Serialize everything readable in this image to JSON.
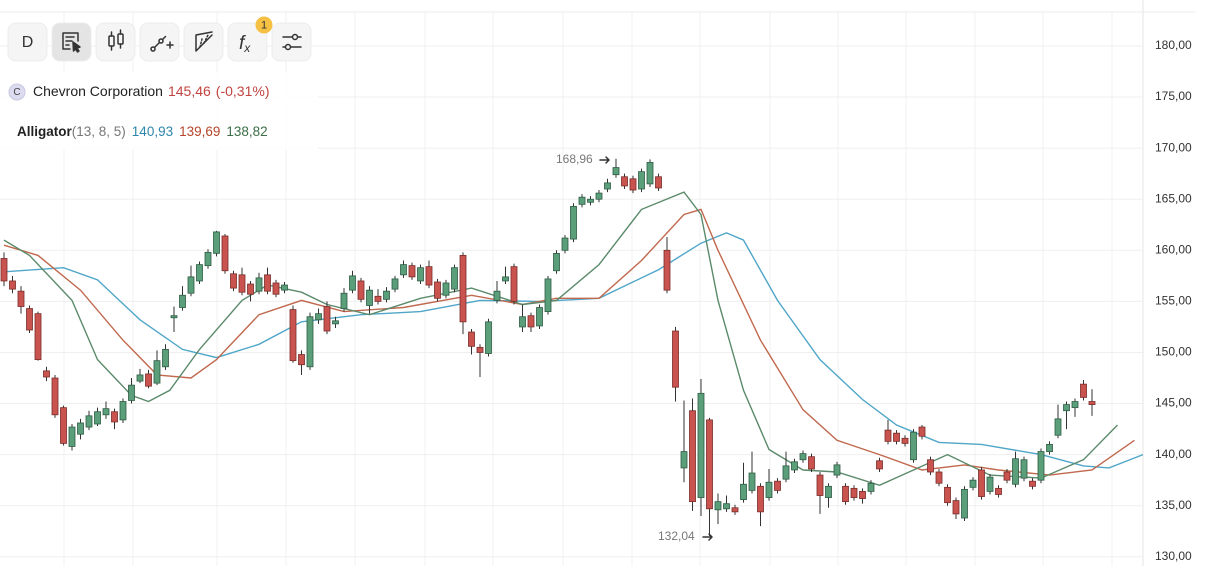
{
  "toolbar": {
    "interval": "D",
    "fx": [
      "f",
      "x"
    ],
    "badge": "1"
  },
  "legend": {
    "symbol_icon": "C",
    "name": "Chevron Corporation",
    "price": "145,46",
    "change": "(-0,31%)",
    "indicator": {
      "name": "Alligator",
      "params": "(13, 8, 5)",
      "values": [
        "140,93",
        "139,69",
        "138,82"
      ]
    }
  },
  "chart_data": {
    "type": "candlestick",
    "up_color": "#5a9e7a",
    "down_color": "#c9544f",
    "ylim": [
      129.1,
      184.5
    ],
    "yticks": [
      {
        "value": 130,
        "label": "130,00"
      },
      {
        "value": 135,
        "label": "135,00"
      },
      {
        "value": 140,
        "label": "140,00"
      },
      {
        "value": 145,
        "label": "145,00"
      },
      {
        "value": 150,
        "label": "150,00"
      },
      {
        "value": 155,
        "label": "155,00"
      },
      {
        "value": 160,
        "label": "160,00"
      },
      {
        "value": 165,
        "label": "165,00"
      },
      {
        "value": 170,
        "label": "170,00"
      },
      {
        "value": 175,
        "label": "175,00"
      },
      {
        "value": 180,
        "label": "180,00"
      }
    ],
    "grid": true,
    "annotations": [
      {
        "text": "168,96",
        "index": 72,
        "value": 168.96
      },
      {
        "text": "132,04",
        "index": 83,
        "value": 132.04
      }
    ],
    "candles": [
      {
        "open": 159.2,
        "high": 159.8,
        "low": 156.5,
        "close": 157.0
      },
      {
        "open": 157.0,
        "high": 157.5,
        "low": 155.8,
        "close": 156.2
      },
      {
        "open": 156.0,
        "high": 156.5,
        "low": 153.8,
        "close": 154.5
      },
      {
        "open": 154.3,
        "high": 154.6,
        "low": 151.9,
        "close": 152.2
      },
      {
        "open": 153.8,
        "high": 154.0,
        "low": 149.2,
        "close": 149.3
      },
      {
        "open": 148.2,
        "high": 148.6,
        "low": 147.2,
        "close": 147.6
      },
      {
        "open": 147.5,
        "high": 147.8,
        "low": 143.6,
        "close": 143.9
      },
      {
        "open": 144.6,
        "high": 144.8,
        "low": 140.9,
        "close": 141.1
      },
      {
        "open": 140.8,
        "high": 143.0,
        "low": 140.4,
        "close": 142.7
      },
      {
        "open": 142.0,
        "high": 143.5,
        "low": 141.5,
        "close": 143.1
      },
      {
        "open": 142.7,
        "high": 144.3,
        "low": 142.4,
        "close": 143.8
      },
      {
        "open": 143.0,
        "high": 144.6,
        "low": 142.8,
        "close": 144.2
      },
      {
        "open": 143.9,
        "high": 145.2,
        "low": 143.5,
        "close": 144.5
      },
      {
        "open": 144.2,
        "high": 144.5,
        "low": 142.5,
        "close": 143.2
      },
      {
        "open": 143.4,
        "high": 145.5,
        "low": 143.1,
        "close": 145.2
      },
      {
        "open": 145.3,
        "high": 147.5,
        "low": 145.0,
        "close": 146.8
      },
      {
        "open": 147.2,
        "high": 148.4,
        "low": 147.0,
        "close": 147.8
      },
      {
        "open": 147.9,
        "high": 148.3,
        "low": 146.5,
        "close": 146.7
      },
      {
        "open": 147.0,
        "high": 150.2,
        "low": 146.8,
        "close": 149.2
      },
      {
        "open": 148.6,
        "high": 150.8,
        "low": 148.3,
        "close": 150.3
      },
      {
        "open": 153.4,
        "high": 154.5,
        "low": 152.0,
        "close": 153.6
      },
      {
        "open": 154.4,
        "high": 156.5,
        "low": 154.1,
        "close": 155.6
      },
      {
        "open": 155.8,
        "high": 158.5,
        "low": 155.5,
        "close": 157.4
      },
      {
        "open": 157.0,
        "high": 158.9,
        "low": 156.7,
        "close": 158.6
      },
      {
        "open": 158.5,
        "high": 160.1,
        "low": 158.2,
        "close": 159.8
      },
      {
        "open": 159.7,
        "high": 161.9,
        "low": 159.4,
        "close": 161.8
      },
      {
        "open": 161.4,
        "high": 161.6,
        "low": 157.7,
        "close": 158.0
      },
      {
        "open": 157.7,
        "high": 158.0,
        "low": 156.0,
        "close": 156.3
      },
      {
        "open": 157.6,
        "high": 158.3,
        "low": 155.6,
        "close": 155.9
      },
      {
        "open": 156.7,
        "high": 157.0,
        "low": 155.0,
        "close": 155.7
      },
      {
        "open": 156.0,
        "high": 157.8,
        "low": 155.7,
        "close": 157.3
      },
      {
        "open": 157.6,
        "high": 158.3,
        "low": 155.7,
        "close": 156.0
      },
      {
        "open": 156.8,
        "high": 157.1,
        "low": 155.4,
        "close": 155.7
      },
      {
        "open": 156.1,
        "high": 156.9,
        "low": 155.8,
        "close": 156.6
      },
      {
        "open": 154.2,
        "high": 154.6,
        "low": 149.0,
        "close": 149.2
      },
      {
        "open": 149.8,
        "high": 150.2,
        "low": 147.8,
        "close": 148.8
      },
      {
        "open": 148.6,
        "high": 153.9,
        "low": 148.3,
        "close": 153.5
      },
      {
        "open": 153.2,
        "high": 154.3,
        "low": 152.8,
        "close": 153.8
      },
      {
        "open": 154.5,
        "high": 155.0,
        "low": 151.8,
        "close": 152.1
      },
      {
        "open": 152.8,
        "high": 153.5,
        "low": 152.4,
        "close": 153.1
      },
      {
        "open": 154.3,
        "high": 156.3,
        "low": 154.0,
        "close": 155.8
      },
      {
        "open": 156.1,
        "high": 158.0,
        "low": 155.8,
        "close": 157.5
      },
      {
        "open": 157.0,
        "high": 157.3,
        "low": 154.9,
        "close": 155.2
      },
      {
        "open": 154.6,
        "high": 156.5,
        "low": 153.8,
        "close": 156.1
      },
      {
        "open": 155.5,
        "high": 156.2,
        "low": 154.7,
        "close": 155.0
      },
      {
        "open": 155.2,
        "high": 156.4,
        "low": 154.9,
        "close": 156.0
      },
      {
        "open": 156.2,
        "high": 157.5,
        "low": 155.9,
        "close": 157.2
      },
      {
        "open": 157.6,
        "high": 159.0,
        "low": 157.3,
        "close": 158.6
      },
      {
        "open": 158.5,
        "high": 158.8,
        "low": 157.1,
        "close": 157.4
      },
      {
        "open": 157.0,
        "high": 158.6,
        "low": 156.7,
        "close": 158.3
      },
      {
        "open": 158.4,
        "high": 159.0,
        "low": 156.3,
        "close": 156.6
      },
      {
        "open": 156.9,
        "high": 157.2,
        "low": 155.0,
        "close": 155.3
      },
      {
        "open": 155.6,
        "high": 157.1,
        "low": 155.3,
        "close": 156.8
      },
      {
        "open": 156.2,
        "high": 158.6,
        "low": 155.9,
        "close": 158.3
      },
      {
        "open": 159.5,
        "high": 159.8,
        "low": 151.8,
        "close": 153.0
      },
      {
        "open": 152.0,
        "high": 152.3,
        "low": 149.8,
        "close": 150.6
      },
      {
        "open": 150.5,
        "high": 150.8,
        "low": 147.6,
        "close": 150.0
      },
      {
        "open": 149.9,
        "high": 153.3,
        "low": 149.6,
        "close": 153.0
      },
      {
        "open": 155.1,
        "high": 157.0,
        "low": 154.8,
        "close": 156.0
      },
      {
        "open": 157.0,
        "high": 158.4,
        "low": 156.7,
        "close": 157.4
      },
      {
        "open": 158.4,
        "high": 158.7,
        "low": 154.7,
        "close": 155.0
      },
      {
        "open": 152.5,
        "high": 154.7,
        "low": 152.0,
        "close": 153.5
      },
      {
        "open": 153.6,
        "high": 153.9,
        "low": 152.0,
        "close": 152.5
      },
      {
        "open": 152.6,
        "high": 154.7,
        "low": 152.3,
        "close": 154.4
      },
      {
        "open": 154.0,
        "high": 157.5,
        "low": 153.7,
        "close": 157.2
      },
      {
        "open": 158.0,
        "high": 160.0,
        "low": 157.7,
        "close": 159.7
      },
      {
        "open": 160.0,
        "high": 161.5,
        "low": 159.7,
        "close": 161.2
      },
      {
        "open": 161.1,
        "high": 164.6,
        "low": 160.8,
        "close": 164.3
      },
      {
        "open": 164.5,
        "high": 165.5,
        "low": 164.2,
        "close": 165.2
      },
      {
        "open": 164.7,
        "high": 165.3,
        "low": 164.4,
        "close": 165.0
      },
      {
        "open": 165.0,
        "high": 165.9,
        "low": 164.7,
        "close": 165.6
      },
      {
        "open": 166.0,
        "high": 167.0,
        "low": 165.7,
        "close": 166.6
      },
      {
        "open": 167.4,
        "high": 168.96,
        "low": 167.1,
        "close": 168.1
      },
      {
        "open": 167.2,
        "high": 167.5,
        "low": 166.0,
        "close": 166.3
      },
      {
        "open": 167.0,
        "high": 167.3,
        "low": 165.6,
        "close": 165.9
      },
      {
        "open": 166.0,
        "high": 168.0,
        "low": 165.7,
        "close": 167.7
      },
      {
        "open": 166.5,
        "high": 168.9,
        "low": 166.2,
        "close": 168.6
      },
      {
        "open": 167.2,
        "high": 167.5,
        "low": 165.8,
        "close": 166.1
      },
      {
        "open": 160.0,
        "high": 161.3,
        "low": 155.8,
        "close": 156.1
      },
      {
        "open": 152.1,
        "high": 152.5,
        "low": 145.2,
        "close": 146.6
      },
      {
        "open": 138.7,
        "high": 145.3,
        "low": 137.3,
        "close": 140.3
      },
      {
        "open": 144.3,
        "high": 145.5,
        "low": 134.5,
        "close": 135.4
      },
      {
        "open": 135.8,
        "high": 147.4,
        "low": 134.0,
        "close": 146.0
      },
      {
        "open": 143.4,
        "high": 143.6,
        "low": 132.04,
        "close": 134.7
      },
      {
        "open": 134.6,
        "high": 136.2,
        "low": 133.2,
        "close": 135.4
      },
      {
        "open": 134.7,
        "high": 136.0,
        "low": 134.4,
        "close": 135.2
      },
      {
        "open": 134.8,
        "high": 135.1,
        "low": 134.1,
        "close": 134.4
      },
      {
        "open": 135.6,
        "high": 139.2,
        "low": 135.3,
        "close": 137.1
      },
      {
        "open": 136.5,
        "high": 140.3,
        "low": 136.2,
        "close": 138.2
      },
      {
        "open": 136.9,
        "high": 137.2,
        "low": 133.0,
        "close": 134.4
      },
      {
        "open": 135.8,
        "high": 138.6,
        "low": 135.5,
        "close": 137.3
      },
      {
        "open": 137.4,
        "high": 137.7,
        "low": 136.2,
        "close": 136.5
      },
      {
        "open": 137.6,
        "high": 140.3,
        "low": 137.3,
        "close": 138.9
      },
      {
        "open": 138.5,
        "high": 139.6,
        "low": 138.2,
        "close": 139.3
      },
      {
        "open": 139.5,
        "high": 140.4,
        "low": 139.2,
        "close": 140.1
      },
      {
        "open": 139.8,
        "high": 140.1,
        "low": 138.3,
        "close": 138.6
      },
      {
        "open": 138.0,
        "high": 138.3,
        "low": 134.2,
        "close": 136.0
      },
      {
        "open": 135.8,
        "high": 137.2,
        "low": 134.8,
        "close": 136.9
      },
      {
        "open": 138.0,
        "high": 139.3,
        "low": 137.7,
        "close": 139.0
      },
      {
        "open": 136.9,
        "high": 137.2,
        "low": 135.1,
        "close": 135.4
      },
      {
        "open": 136.7,
        "high": 137.0,
        "low": 135.5,
        "close": 135.8
      },
      {
        "open": 136.4,
        "high": 136.7,
        "low": 135.2,
        "close": 135.7
      },
      {
        "open": 136.4,
        "high": 137.5,
        "low": 136.1,
        "close": 137.2
      },
      {
        "open": 139.4,
        "high": 139.7,
        "low": 138.3,
        "close": 138.6
      },
      {
        "open": 142.4,
        "high": 143.4,
        "low": 141.0,
        "close": 141.3
      },
      {
        "open": 142.1,
        "high": 142.4,
        "low": 141.0,
        "close": 141.3
      },
      {
        "open": 141.6,
        "high": 141.9,
        "low": 140.8,
        "close": 141.1
      },
      {
        "open": 139.5,
        "high": 142.5,
        "low": 139.2,
        "close": 142.2
      },
      {
        "open": 142.7,
        "high": 142.9,
        "low": 141.5,
        "close": 141.8
      },
      {
        "open": 139.5,
        "high": 139.8,
        "low": 138.0,
        "close": 138.3
      },
      {
        "open": 138.3,
        "high": 138.6,
        "low": 136.9,
        "close": 137.2
      },
      {
        "open": 136.8,
        "high": 137.1,
        "low": 135.0,
        "close": 135.3
      },
      {
        "open": 135.5,
        "high": 135.8,
        "low": 133.7,
        "close": 134.2
      },
      {
        "open": 133.8,
        "high": 136.9,
        "low": 133.5,
        "close": 136.6
      },
      {
        "open": 136.8,
        "high": 137.8,
        "low": 136.5,
        "close": 137.5
      },
      {
        "open": 138.5,
        "high": 138.8,
        "low": 135.6,
        "close": 135.9
      },
      {
        "open": 136.4,
        "high": 138.1,
        "low": 136.1,
        "close": 137.8
      },
      {
        "open": 136.7,
        "high": 137.0,
        "low": 135.8,
        "close": 136.1
      },
      {
        "open": 138.3,
        "high": 138.6,
        "low": 137.2,
        "close": 137.5
      },
      {
        "open": 137.1,
        "high": 140.3,
        "low": 136.8,
        "close": 139.6
      },
      {
        "open": 137.7,
        "high": 139.8,
        "low": 137.4,
        "close": 139.5
      },
      {
        "open": 137.4,
        "high": 137.7,
        "low": 136.6,
        "close": 136.9
      },
      {
        "open": 137.5,
        "high": 140.6,
        "low": 137.2,
        "close": 140.3
      },
      {
        "open": 140.3,
        "high": 141.3,
        "low": 140.0,
        "close": 141.0
      },
      {
        "open": 141.9,
        "high": 144.9,
        "low": 141.6,
        "close": 143.5
      },
      {
        "open": 144.3,
        "high": 145.2,
        "low": 142.5,
        "close": 144.9
      },
      {
        "open": 144.6,
        "high": 145.5,
        "low": 143.7,
        "close": 145.2
      },
      {
        "open": 146.9,
        "high": 147.3,
        "low": 145.3,
        "close": 145.6
      },
      {
        "open": 145.2,
        "high": 146.4,
        "low": 143.8,
        "close": 144.9
      }
    ],
    "series": [
      {
        "color": "#4fa6c8",
        "x": [
          0,
          7,
          11,
          16,
          21,
          25,
          30,
          35,
          42,
          49,
          56,
          63,
          70,
          77,
          82,
          85,
          87,
          91,
          96,
          101,
          105,
          110,
          115,
          122,
          127,
          130,
          134
        ],
        "values": [
          157.9,
          158.3,
          157.1,
          153.2,
          150.3,
          149.5,
          150.8,
          153.0,
          153.7,
          154.0,
          155.1,
          155.0,
          155.3,
          158.1,
          160.7,
          161.7,
          161.0,
          155.1,
          149.3,
          145.4,
          142.9,
          141.2,
          141.0,
          140.0,
          138.9,
          138.7,
          140.0
        ]
      },
      {
        "color": "#c0694e",
        "x": [
          0,
          4,
          9,
          14,
          18,
          22,
          25,
          30,
          35,
          40,
          47,
          55,
          61,
          65,
          70,
          75,
          80,
          82,
          84,
          89,
          94,
          98,
          103,
          108,
          113,
          117,
          123,
          128,
          133
        ],
        "values": [
          160.5,
          159.5,
          156.1,
          151.2,
          147.8,
          147.5,
          149.3,
          153.7,
          155.1,
          154.0,
          154.4,
          155.6,
          154.7,
          155.3,
          155.3,
          159.0,
          163.5,
          164.0,
          160.0,
          151.2,
          144.4,
          141.4,
          140.0,
          138.5,
          139.0,
          138.5,
          138.0,
          138.5,
          141.4
        ]
      },
      {
        "color": "#5b8a6a",
        "x": [
          0,
          3,
          8,
          11,
          15,
          17,
          19.5,
          23,
          28,
          31,
          35,
          38,
          43,
          49,
          55,
          61,
          65,
          70,
          75,
          80,
          82,
          84,
          87,
          90,
          94,
          98,
          103,
          107,
          111,
          116,
          122,
          127,
          131
        ],
        "values": [
          161.0,
          159.5,
          155.1,
          149.3,
          145.8,
          145.2,
          146.3,
          150.3,
          155.1,
          156.6,
          155.9,
          154.7,
          153.7,
          155.3,
          156.3,
          154.7,
          155.1,
          158.6,
          164.0,
          165.7,
          163.5,
          155.1,
          146.3,
          140.5,
          138.5,
          138.3,
          137.0,
          138.5,
          140.0,
          138.0,
          137.7,
          139.5,
          142.9
        ]
      }
    ]
  }
}
